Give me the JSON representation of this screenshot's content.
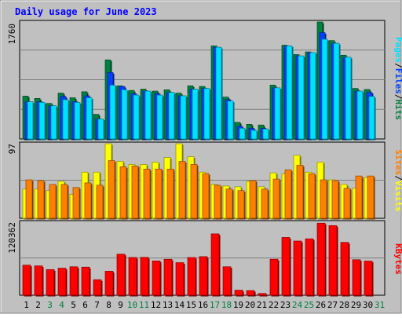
{
  "chart_data": [
    {
      "type": "bar",
      "title": "Daily usage for June 2023",
      "x": [
        "1",
        "2",
        "3",
        "4",
        "5",
        "6",
        "7",
        "8",
        "9",
        "10",
        "11",
        "12",
        "13",
        "14",
        "15",
        "16",
        "17",
        "18",
        "19",
        "20",
        "21",
        "22",
        "23",
        "24",
        "25",
        "26",
        "27",
        "28",
        "29",
        "30",
        "31"
      ],
      "weekend_days": [
        "3",
        "4",
        "10",
        "11",
        "17",
        "18",
        "24",
        "25",
        "31"
      ],
      "panel": "hits-files-pages",
      "ymax_label": "1760",
      "ymax": 1760,
      "legend": [
        "Pages",
        "Files",
        "Hits"
      ],
      "series": [
        {
          "name": "Hits",
          "color": "#008040",
          "values": [
            645,
            610,
            535,
            690,
            620,
            710,
            370,
            1190,
            800,
            730,
            750,
            720,
            740,
            690,
            800,
            790,
            1400,
            630,
            250,
            220,
            210,
            810,
            1410,
            1270,
            1310,
            1760,
            1480,
            1260,
            760,
            745,
            null
          ]
        },
        {
          "name": "Files",
          "color": "#0040ff",
          "values": [
            560,
            560,
            500,
            640,
            560,
            650,
            300,
            1000,
            790,
            680,
            720,
            680,
            700,
            650,
            750,
            760,
            1380,
            590,
            190,
            160,
            160,
            770,
            1400,
            1250,
            1300,
            1600,
            1440,
            1230,
            720,
            700,
            null
          ]
        },
        {
          "name": "Pages",
          "color": "#00e0ff",
          "values": [
            560,
            550,
            500,
            590,
            550,
            620,
            300,
            810,
            740,
            660,
            720,
            660,
            700,
            650,
            750,
            760,
            1380,
            570,
            160,
            130,
            150,
            770,
            1400,
            1250,
            1300,
            1500,
            1440,
            1230,
            720,
            640,
            null
          ]
        }
      ]
    },
    {
      "type": "bar",
      "panel": "visits-sites",
      "ymax_label": "97",
      "ymax": 97,
      "legend": [
        "Sites",
        "Visits"
      ],
      "series": [
        {
          "name": "Visits",
          "color": "#ffff00",
          "values": [
            38,
            38,
            36,
            48,
            31,
            60,
            60,
            97,
            74,
            70,
            70,
            73,
            79,
            97,
            80,
            60,
            44,
            42,
            41,
            48,
            41,
            59,
            58,
            82,
            60,
            73,
            50,
            44,
            39,
            53,
            null
          ]
        },
        {
          "name": "Sites",
          "color": "#ff8000",
          "values": [
            50,
            49,
            44,
            44,
            40,
            46,
            43,
            75,
            67,
            68,
            64,
            64,
            64,
            74,
            70,
            58,
            43,
            38,
            36,
            49,
            38,
            51,
            63,
            69,
            58,
            50,
            49,
            39,
            55,
            55,
            null
          ]
        }
      ]
    },
    {
      "type": "bar",
      "panel": "kbytes",
      "ymax_label": "120362",
      "ymax": 120362,
      "legend": [
        "KBytes"
      ],
      "series": [
        {
          "name": "KBytes",
          "color": "#ff0000",
          "values": [
            49600,
            48400,
            42300,
            44600,
            46900,
            46300,
            25600,
            39600,
            67700,
            62300,
            62500,
            56500,
            59200,
            53700,
            62200,
            63600,
            101100,
            46900,
            8300,
            7700,
            2900,
            59300,
            95200,
            89300,
            93000,
            118700,
            114800,
            87100,
            58500,
            56300,
            null
          ]
        }
      ]
    }
  ]
}
